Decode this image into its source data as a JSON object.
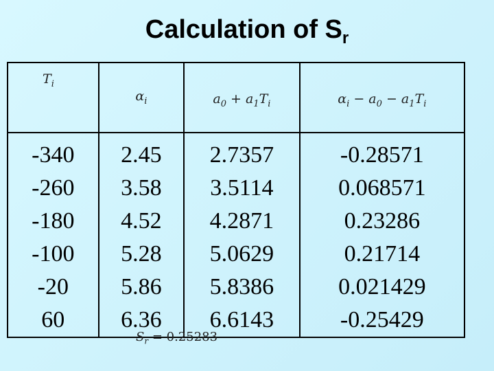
{
  "title": {
    "text": "Calculation of S",
    "subscript": "r"
  },
  "table": {
    "header": [
      [
        [
          "T",
          "i"
        ]
      ],
      [
        [
          "α",
          "i"
        ]
      ],
      [
        [
          "a",
          "0"
        ],
        [
          " + a",
          "1"
        ],
        [
          "T",
          "i"
        ]
      ],
      [
        [
          "α",
          "i"
        ],
        [
          " − a",
          "0"
        ],
        [
          " − a",
          "1"
        ],
        [
          "T",
          "i"
        ]
      ]
    ],
    "rows": [
      [
        -340,
        2.45,
        2.7357,
        -0.28571
      ],
      [
        -260,
        3.58,
        3.5114,
        0.068571
      ],
      [
        -180,
        4.52,
        4.2871,
        0.23286
      ],
      [
        -100,
        5.28,
        5.0629,
        0.21714
      ],
      [
        -20,
        5.86,
        5.8386,
        0.021429
      ],
      [
        60,
        6.36,
        6.6143,
        -0.25429
      ]
    ]
  },
  "footer": [
    [
      "S",
      "r"
    ],
    [
      " = 0.25283",
      null
    ]
  ]
}
